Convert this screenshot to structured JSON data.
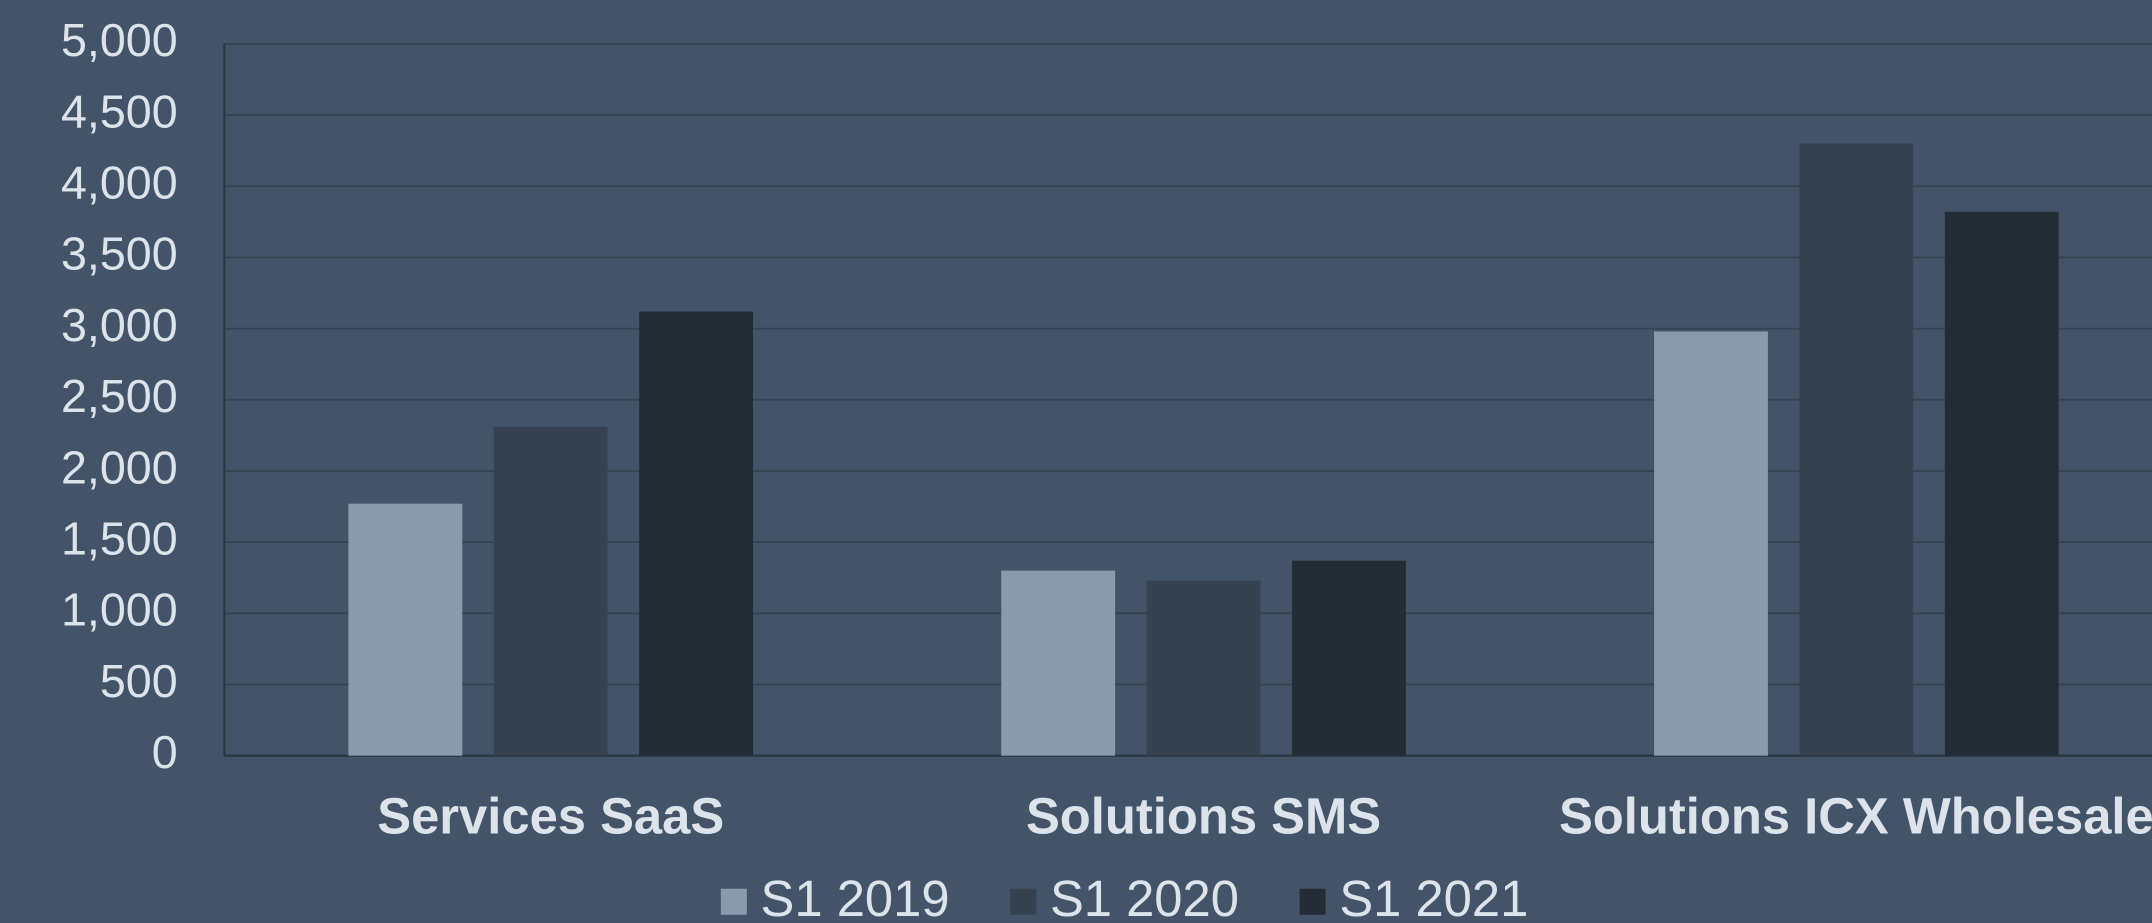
{
  "chart_data": {
    "type": "bar",
    "categories": [
      "Services SaaS",
      "Solutions SMS",
      "Solutions ICX Wholesale"
    ],
    "series": [
      {
        "name": "S1 2019",
        "color": "#8a9aab",
        "values": [
          1770,
          1300,
          2980
        ]
      },
      {
        "name": "S1 2020",
        "color": "#36424f",
        "values": [
          2310,
          1230,
          4300
        ]
      },
      {
        "name": "S1 2021",
        "color": "#242c36",
        "values": [
          3120,
          1370,
          3820
        ]
      }
    ],
    "ylim": [
      0,
      5000
    ],
    "yticks": [
      0,
      {
        "value": 500,
        "label": "500"
      },
      {
        "value": 1000,
        "label": "1,000"
      },
      {
        "value": 1500,
        "label": "1,500"
      },
      {
        "value": 2000,
        "label": "2,000"
      },
      {
        "value": 2500,
        "label": "2,500"
      },
      {
        "value": 3000,
        "label": "3,000"
      },
      {
        "value": 3500,
        "label": "3,500"
      },
      {
        "value": 4000,
        "label": "4,000"
      },
      {
        "value": 4500,
        "label": "4,500"
      },
      {
        "value": 5000,
        "label": "5,000"
      }
    ],
    "grid": true,
    "legend": "bottom"
  }
}
